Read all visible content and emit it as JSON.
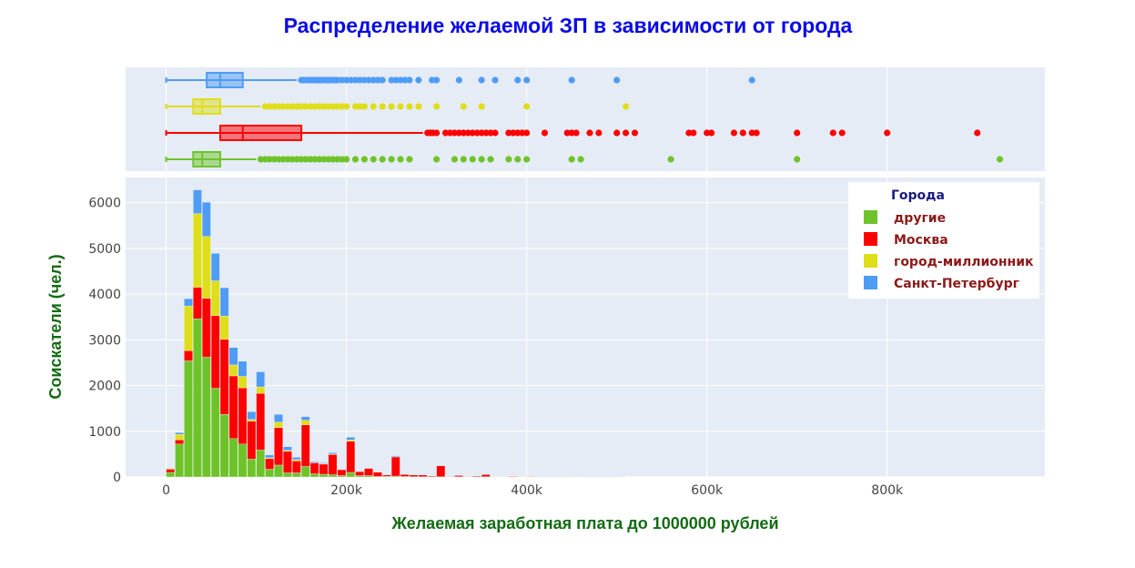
{
  "chart_data": {
    "type": "histogram-with-boxplots",
    "title": "Распределение желаемой ЗП в зависимости от города",
    "xlabel": "Желаемая заработная плата до 1000000 рублей",
    "ylabel": "Соискатели (чел.)",
    "xlim": [
      -45000,
      975000
    ],
    "ylim": [
      0,
      6550
    ],
    "x_ticks": [
      0,
      200000,
      400000,
      600000,
      800000
    ],
    "x_tick_labels": [
      "0",
      "200k",
      "400k",
      "600k",
      "800k"
    ],
    "y_ticks": [
      0,
      1000,
      2000,
      3000,
      4000,
      5000,
      6000
    ],
    "y_tick_labels": [
      "0",
      "1000",
      "2000",
      "3000",
      "4000",
      "5000",
      "6000"
    ],
    "bin_width": 10000,
    "grid": true,
    "legend": {
      "title": "Города",
      "placement": "top-right",
      "entries": [
        "другие",
        "Москва",
        "город-миллионник",
        "Санкт-Петербург"
      ]
    },
    "colors": {
      "другие": "#6fc32a",
      "Москва": "#ff0000",
      "город-миллионник": "#dede1a",
      "Санкт-Петербург": "#4f9cf5",
      "title": "#0a0ae6",
      "axis_title": "#146b14",
      "legend_title": "#1a1a80",
      "legend_label": "#8b1a1a"
    },
    "bins": [
      0,
      10000,
      20000,
      30000,
      40000,
      50000,
      60000,
      70000,
      80000,
      90000,
      100000,
      110000,
      120000,
      130000,
      140000,
      150000,
      160000,
      170000,
      180000,
      190000,
      200000,
      210000,
      220000,
      230000,
      240000,
      250000,
      260000,
      270000,
      280000,
      290000,
      300000,
      310000,
      320000,
      330000,
      340000,
      350000,
      360000,
      370000,
      380000,
      390000,
      400000,
      410000,
      420000,
      430000,
      440000,
      450000,
      460000,
      470000,
      480000,
      490000,
      500000
    ],
    "series": [
      {
        "name": "другие",
        "values": [
          100,
          720,
          2540,
          3460,
          2620,
          1940,
          1370,
          840,
          720,
          390,
          590,
          170,
          260,
          90,
          90,
          230,
          70,
          60,
          50,
          30,
          100,
          30,
          30,
          10,
          15,
          20,
          10,
          8,
          6,
          5,
          5,
          5,
          5,
          5,
          5,
          5,
          3,
          3,
          3,
          3,
          5,
          2,
          2,
          2,
          2,
          2,
          2,
          2,
          2,
          2,
          2
        ]
      },
      {
        "name": "Москва",
        "values": [
          70,
          90,
          220,
          690,
          1290,
          1590,
          1640,
          1370,
          1230,
          830,
          1240,
          230,
          820,
          470,
          260,
          910,
          240,
          220,
          440,
          130,
          680,
          90,
          160,
          100,
          30,
          420,
          50,
          40,
          40,
          20,
          240,
          10,
          30,
          10,
          20,
          50,
          10,
          10,
          20,
          10,
          15,
          8,
          5,
          5,
          5,
          10,
          5,
          5,
          5,
          5,
          10
        ]
      },
      {
        "name": "город-миллионник",
        "values": [
          20,
          120,
          980,
          1610,
          1350,
          760,
          510,
          240,
          250,
          40,
          140,
          20,
          120,
          20,
          30,
          100,
          5,
          10,
          10,
          5,
          30,
          3,
          3,
          3,
          3,
          3,
          2,
          2,
          2,
          2,
          3,
          2,
          2,
          2,
          2,
          3,
          1,
          1,
          1,
          1,
          2,
          1,
          1,
          1,
          1,
          1,
          1,
          1,
          1,
          1,
          1
        ]
      },
      {
        "name": "Санкт-Петербург",
        "values": [
          10,
          40,
          160,
          520,
          750,
          600,
          620,
          380,
          330,
          170,
          330,
          60,
          170,
          80,
          50,
          80,
          20,
          20,
          30,
          10,
          60,
          10,
          10,
          5,
          5,
          20,
          5,
          5,
          5,
          3,
          10,
          2,
          2,
          2,
          2,
          5,
          2,
          2,
          2,
          2,
          3,
          1,
          1,
          1,
          1,
          2,
          1,
          1,
          1,
          1,
          2
        ]
      }
    ],
    "boxplots": [
      {
        "name": "Санкт-Петербург",
        "min": 0,
        "q1": 45000,
        "median": 60000,
        "q3": 85000,
        "upper_fence": 145000,
        "outliers": [
          150000,
          152000,
          155000,
          158000,
          160000,
          162000,
          165000,
          168000,
          170000,
          172000,
          175000,
          178000,
          180000,
          182000,
          185000,
          188000,
          190000,
          195000,
          200000,
          205000,
          210000,
          215000,
          220000,
          225000,
          230000,
          235000,
          240000,
          250000,
          255000,
          260000,
          265000,
          270000,
          280000,
          295000,
          300000,
          325000,
          350000,
          365000,
          390000,
          400000,
          450000,
          500000,
          650000
        ]
      },
      {
        "name": "город-миллионник",
        "min": 0,
        "q1": 30000,
        "median": 40000,
        "q3": 60000,
        "upper_fence": 105000,
        "outliers": [
          110000,
          115000,
          120000,
          125000,
          130000,
          135000,
          140000,
          145000,
          150000,
          155000,
          160000,
          165000,
          170000,
          175000,
          180000,
          185000,
          190000,
          195000,
          200000,
          210000,
          215000,
          220000,
          230000,
          240000,
          250000,
          260000,
          270000,
          280000,
          300000,
          330000,
          350000,
          400000,
          510000
        ]
      },
      {
        "name": "Москва",
        "min": 0,
        "q1": 60000,
        "median": 85000,
        "q3": 150000,
        "upper_fence": 285000,
        "outliers": [
          290000,
          293000,
          296000,
          300000,
          310000,
          315000,
          320000,
          325000,
          330000,
          335000,
          340000,
          345000,
          350000,
          355000,
          360000,
          365000,
          380000,
          385000,
          390000,
          395000,
          400000,
          420000,
          445000,
          450000,
          455000,
          470000,
          480000,
          500000,
          510000,
          520000,
          580000,
          585000,
          600000,
          605000,
          630000,
          640000,
          650000,
          655000,
          700000,
          740000,
          750000,
          800000,
          900000
        ]
      },
      {
        "name": "другие",
        "min": 0,
        "q1": 30000,
        "median": 40000,
        "q3": 60000,
        "upper_fence": 100000,
        "outliers": [
          105000,
          110000,
          115000,
          120000,
          125000,
          130000,
          135000,
          140000,
          145000,
          150000,
          155000,
          160000,
          165000,
          170000,
          175000,
          180000,
          185000,
          190000,
          195000,
          200000,
          210000,
          220000,
          230000,
          240000,
          250000,
          260000,
          270000,
          300000,
          320000,
          330000,
          340000,
          350000,
          360000,
          380000,
          390000,
          400000,
          450000,
          460000,
          560000,
          700000,
          925000
        ]
      }
    ]
  }
}
